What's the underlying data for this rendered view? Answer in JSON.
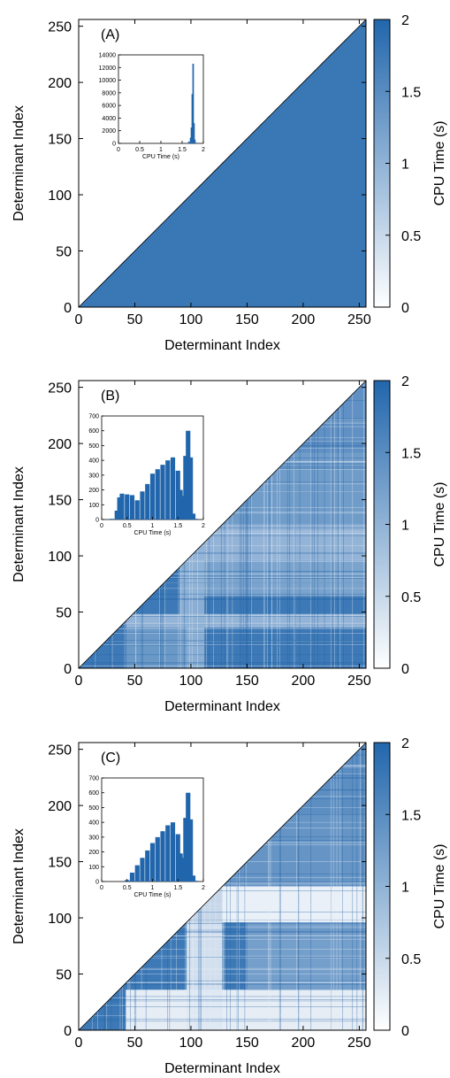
{
  "chart_data": [
    {
      "type": "heatmap",
      "panel_label": "(A)",
      "xlabel": "Determinant Index",
      "ylabel": "Determinant Index",
      "x_ticks": [
        "0",
        "50",
        "100",
        "150",
        "200",
        "250"
      ],
      "y_ticks": [
        "0",
        "50",
        "100",
        "150",
        "200",
        "250"
      ],
      "xlim": [
        0,
        256
      ],
      "ylim": [
        0,
        256
      ],
      "colorbar": {
        "label": "CPU Time (s)",
        "range": [
          0,
          2
        ],
        "ticks": [
          "0",
          "0.5",
          "1",
          "1.5",
          "2"
        ],
        "color_low": "#ffffff",
        "color_high": "#2166ac"
      },
      "matrix_note_values": {
        "default_cpu_time": 1.78,
        "light_blocks": []
      },
      "inset": {
        "type": "bar",
        "xlabel": "CPU Time (s)",
        "x_ticks": [
          "0",
          "0.5",
          "1",
          "1.5",
          "2"
        ],
        "y_ticks": [
          "0",
          "2000",
          "4000",
          "6000",
          "8000",
          "10000",
          "12000",
          "14000"
        ],
        "xlim": [
          0,
          2
        ],
        "ylim": [
          0,
          14000
        ],
        "bins_x": [
          1.62,
          1.66,
          1.7,
          1.72,
          1.74,
          1.76,
          1.78,
          1.8,
          1.84
        ],
        "bins_y": [
          80,
          300,
          900,
          2500,
          7800,
          12600,
          3200,
          600,
          100
        ]
      }
    },
    {
      "type": "heatmap",
      "panel_label": "(B)",
      "xlabel": "Determinant Index",
      "ylabel": "Determinant Index",
      "x_ticks": [
        "0",
        "50",
        "100",
        "150",
        "200",
        "250"
      ],
      "y_ticks": [
        "0",
        "50",
        "100",
        "150",
        "200",
        "250"
      ],
      "xlim": [
        0,
        256
      ],
      "ylim": [
        0,
        256
      ],
      "colorbar": {
        "label": "CPU Time (s)",
        "range": [
          0,
          2
        ],
        "ticks": [
          "0",
          "0.5",
          "1",
          "1.5",
          "2"
        ],
        "color_low": "#ffffff",
        "color_high": "#2166ac"
      },
      "matrix_note_values": {
        "default_cpu_time": 1.75,
        "light_blocks": [
          {
            "x": [
              42,
              256
            ],
            "y": [
              96,
              128
            ],
            "cpu": 0.9
          },
          {
            "x": [
              42,
              256
            ],
            "y": [
              36,
              48
            ],
            "cpu": 0.9
          },
          {
            "x": [
              96,
              256
            ],
            "y": [
              64,
              96
            ],
            "cpu": 1.15
          },
          {
            "x": [
              128,
              256
            ],
            "y": [
              128,
              192
            ],
            "cpu": 1.25
          },
          {
            "x": [
              192,
              256
            ],
            "y": [
              192,
              256
            ],
            "cpu": 1.4
          },
          {
            "x": [
              90,
              112
            ],
            "y": [
              0,
              96
            ],
            "cpu": 1.0
          },
          {
            "x": [
              42,
              96
            ],
            "y": [
              0,
              36
            ],
            "cpu": 1.3
          }
        ]
      },
      "inset": {
        "type": "bar",
        "xlabel": "CPU Time (s)",
        "x_ticks": [
          "0",
          "0.5",
          "1",
          "1.5",
          "2"
        ],
        "y_ticks": [
          "0",
          "100",
          "200",
          "300",
          "400",
          "500",
          "600",
          "700"
        ],
        "xlim": [
          0,
          2
        ],
        "ylim": [
          0,
          700
        ],
        "bins_x": [
          0.2,
          0.3,
          0.35,
          0.4,
          0.5,
          0.6,
          0.7,
          0.8,
          0.9,
          1.0,
          1.1,
          1.2,
          1.3,
          1.4,
          1.5,
          1.55,
          1.6,
          1.65,
          1.7,
          1.75,
          1.8,
          1.85
        ],
        "bins_y": [
          5,
          60,
          150,
          175,
          170,
          165,
          130,
          190,
          240,
          310,
          340,
          370,
          400,
          420,
          330,
          200,
          160,
          430,
          600,
          420,
          40,
          5
        ]
      }
    },
    {
      "type": "heatmap",
      "panel_label": "(C)",
      "xlabel": "Determinant Index",
      "ylabel": "Determinant Index",
      "x_ticks": [
        "0",
        "50",
        "100",
        "150",
        "200",
        "250"
      ],
      "y_ticks": [
        "0",
        "50",
        "100",
        "150",
        "200",
        "250"
      ],
      "xlim": [
        0,
        256
      ],
      "ylim": [
        0,
        256
      ],
      "colorbar": {
        "label": "CPU Time (s)",
        "range": [
          0,
          2
        ],
        "ticks": [
          "0",
          "0.5",
          "1",
          "1.5",
          "2"
        ],
        "color_low": "#ffffff",
        "color_high": "#2166ac"
      },
      "matrix_note_values": {
        "default_cpu_time": 1.75,
        "light_blocks": [
          {
            "x": [
              128,
              256
            ],
            "y": [
              96,
              128
            ],
            "cpu": 0.05
          },
          {
            "x": [
              96,
              128
            ],
            "y": [
              96,
              128
            ],
            "cpu": 0.4
          },
          {
            "x": [
              42,
              256
            ],
            "y": [
              0,
              36
            ],
            "cpu": 0.1
          },
          {
            "x": [
              96,
              128
            ],
            "y": [
              0,
              96
            ],
            "cpu": 0.3
          },
          {
            "x": [
              150,
              256
            ],
            "y": [
              36,
              96
            ],
            "cpu": 1.2
          },
          {
            "x": [
              128,
              256
            ],
            "y": [
              128,
              192
            ],
            "cpu": 1.35
          },
          {
            "x": [
              192,
              256
            ],
            "y": [
              192,
              256
            ],
            "cpu": 1.45
          }
        ]
      },
      "inset": {
        "type": "bar",
        "xlabel": "CPU Time (s)",
        "x_ticks": [
          "0",
          "0.5",
          "1",
          "1.5",
          "2"
        ],
        "y_ticks": [
          "0",
          "100",
          "200",
          "300",
          "400",
          "500",
          "600",
          "700"
        ],
        "xlim": [
          0,
          2
        ],
        "ylim": [
          0,
          700
        ],
        "bins_x": [
          0.5,
          0.6,
          0.7,
          0.8,
          0.9,
          1.0,
          1.1,
          1.2,
          1.3,
          1.4,
          1.5,
          1.55,
          1.6,
          1.65,
          1.7,
          1.75,
          1.8,
          1.85
        ],
        "bins_y": [
          10,
          60,
          110,
          160,
          210,
          260,
          300,
          340,
          380,
          400,
          320,
          190,
          160,
          430,
          600,
          420,
          40,
          5
        ]
      }
    }
  ]
}
